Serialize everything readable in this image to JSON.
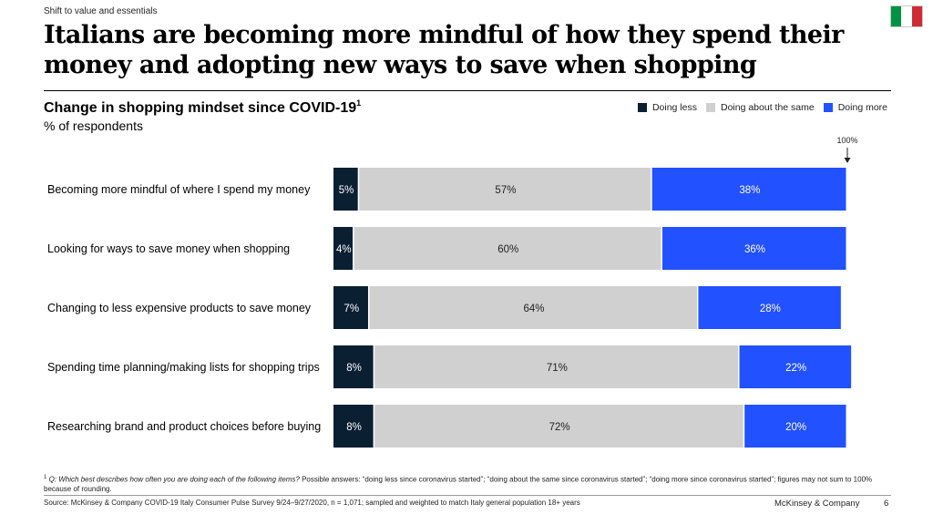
{
  "header": {
    "section_label": "Shift to value and essentials",
    "title": "Italians are becoming more mindful of how they spend their money and adopting new ways to save when shopping",
    "flag_colors": [
      "#009246",
      "#ffffff",
      "#ce2b37"
    ]
  },
  "chart": {
    "title": "Change in shopping mindset since COVID-19",
    "title_footnote_mark": "1",
    "subtitle": "% of respondents"
  },
  "chart_data": {
    "type": "bar",
    "orientation": "horizontal",
    "stacked": true,
    "total_label": "100%",
    "categories": [
      "Becoming more mindful of where I spend my money",
      "Looking for ways to save money when shopping",
      "Changing to less expensive products to save money",
      "Spending time planning/making lists for shopping trips",
      "Researching brand and product choices before buying"
    ],
    "series": [
      {
        "name": "Doing less",
        "color": "#0b1f33",
        "text_color": "#ffffff",
        "values": [
          5,
          4,
          7,
          8,
          8
        ]
      },
      {
        "name": "Doing about the same",
        "color": "#d0d0d0",
        "text_color": "#222222",
        "values": [
          57,
          60,
          64,
          71,
          72
        ]
      },
      {
        "name": "Doing more",
        "color": "#2251ff",
        "text_color": "#ffffff",
        "values": [
          38,
          36,
          28,
          22,
          20
        ]
      }
    ],
    "legend_position": "top-right",
    "xlim": [
      0,
      100
    ]
  },
  "footnote": {
    "mark": "1",
    "question_label": "Q: Which best describes how often you are doing each of the following items?",
    "rest": " Possible answers: “doing less since coronavirus started”; “doing about the same since coronavirus started”; “doing more since coronavirus started”; figures may not sum to 100% because of rounding."
  },
  "footer": {
    "source": "Source: McKinsey & Company COVID-19 Italy Consumer Pulse Survey 9/24–9/27/2020, n = 1,071; sampled and weighted to match Italy general population 18+ years",
    "brand": "McKinsey & Company",
    "page_number": "6"
  }
}
